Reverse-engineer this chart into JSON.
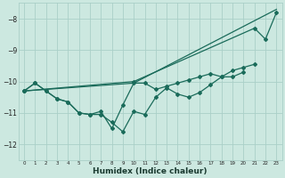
{
  "xlabel": "Humidex (Indice chaleur)",
  "bg_color": "#cce8e0",
  "grid_color": "#aacfc8",
  "line_color": "#1a6b5a",
  "xlim": [
    -0.5,
    23.5
  ],
  "ylim": [
    -12.5,
    -7.5
  ],
  "yticks": [
    -12,
    -11,
    -10,
    -9,
    -8
  ],
  "series1_x": [
    0,
    1,
    2,
    3,
    4,
    5,
    6,
    7,
    8,
    9,
    10,
    11,
    12,
    13,
    14,
    15,
    16,
    17,
    18,
    19,
    20,
    21
  ],
  "series1_y": [
    -10.3,
    -10.05,
    -10.3,
    -10.55,
    -10.65,
    -11.0,
    -11.05,
    -11.05,
    -11.3,
    -11.6,
    -10.95,
    -11.05,
    -10.5,
    -10.2,
    -10.4,
    -10.5,
    -10.35,
    -10.1,
    -9.85,
    -9.65,
    -9.55,
    -9.45
  ],
  "series2_x": [
    0,
    1,
    2,
    3,
    4,
    5,
    6,
    7,
    8,
    9,
    10,
    11,
    12,
    13,
    14,
    15,
    16,
    17,
    18,
    19,
    20
  ],
  "series2_y": [
    -10.3,
    -10.05,
    -10.3,
    -10.55,
    -10.65,
    -11.0,
    -11.05,
    -10.95,
    -11.5,
    -10.75,
    -10.05,
    -10.05,
    -10.25,
    -10.15,
    -10.05,
    -9.95,
    -9.85,
    -9.75,
    -9.85,
    -9.85,
    -9.7
  ],
  "series3_x": [
    0,
    10,
    21,
    22,
    23
  ],
  "series3_y": [
    -10.3,
    -10.0,
    -8.3,
    -8.65,
    -7.8
  ],
  "series4_x": [
    0,
    10,
    23
  ],
  "series4_y": [
    -10.3,
    -10.05,
    -7.7
  ]
}
